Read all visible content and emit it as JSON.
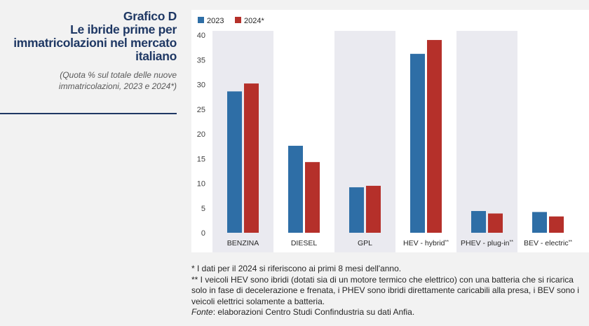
{
  "header": {
    "title_lines": [
      "Grafico D",
      "Le ibride prime per",
      "immatricolazioni nel mercato",
      "italiano"
    ],
    "subtitle_lines": [
      "(Quota % sul totale delle nuove",
      "immatricolazioni, 2023 e 2024*)"
    ]
  },
  "colors": {
    "series_2023": "#2e6ea6",
    "series_2024": "#b5302a",
    "band": "#eaeaf0",
    "title": "#1f3864"
  },
  "chart_data": {
    "type": "bar",
    "categories": [
      "BENZINA",
      "DIESEL",
      "GPL",
      "HEV - hybrid**",
      "PHEV - plug-in**",
      "BEV - electric**"
    ],
    "series": [
      {
        "name": "2023",
        "values": [
          28.6,
          17.6,
          9.2,
          36.2,
          4.4,
          4.2
        ]
      },
      {
        "name": "2024*",
        "values": [
          30.2,
          14.3,
          9.5,
          39.0,
          3.9,
          3.3
        ]
      }
    ],
    "yticks": [
      0,
      5,
      10,
      15,
      20,
      25,
      30,
      35,
      40
    ],
    "ylim": [
      0,
      40
    ],
    "legend_position": "top-left",
    "grid": false
  },
  "notes": {
    "line1": " * I dati per il 2024 si riferiscono ai primi 8 mesi dell'anno.",
    "line2": "** I veicoli HEV sono ibridi (dotati sia di un motore termico che elettrico) con una batteria che si ricarica solo in fase di decelerazione e frenata, i PHEV sono ibridi direttamente caricabili alla presa, i BEV sono i veicoli elettrici solamente a batteria.",
    "source_label": "Fonte",
    "source_text": ": elaborazioni Centro Studi Confindustria su dati Anfia."
  }
}
